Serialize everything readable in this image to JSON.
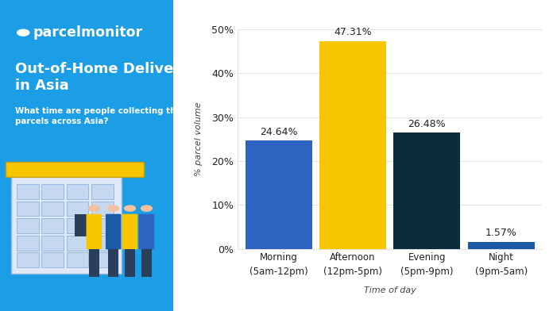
{
  "chart_data": {
    "type": "bar",
    "logo_text": "parcelmonitor",
    "title": "Out-of-Home Delivery in Asia",
    "subtitle": "What time are people collecting their parcels across Asia?",
    "x_label": "Time of day",
    "y_label": "% parcel volume",
    "categories": [
      "Morning\n(5am-12pm)",
      "Afternoon\n(12pm-5pm)",
      "Evening\n(5pm-9pm)",
      "Night\n(9pm-5am)"
    ],
    "values": [
      24.64,
      47.31,
      26.48,
      1.57
    ],
    "value_labels": [
      "24.64%",
      "47.31%",
      "26.48%",
      "1.57%"
    ],
    "data_labels": true,
    "colors": [
      "#2f63c2",
      "#f7c600",
      "#0b2d3b",
      "#1c5aa6"
    ],
    "ylim": [
      0,
      50
    ],
    "yticks": [
      {
        "value": 0,
        "label": "0%"
      },
      {
        "value": 10,
        "label": "10%"
      },
      {
        "value": 20,
        "label": "20%"
      },
      {
        "value": 30,
        "label": "30%"
      },
      {
        "value": 40,
        "label": "40%"
      },
      {
        "value": 50,
        "label": "50%"
      }
    ],
    "grid": true
  }
}
